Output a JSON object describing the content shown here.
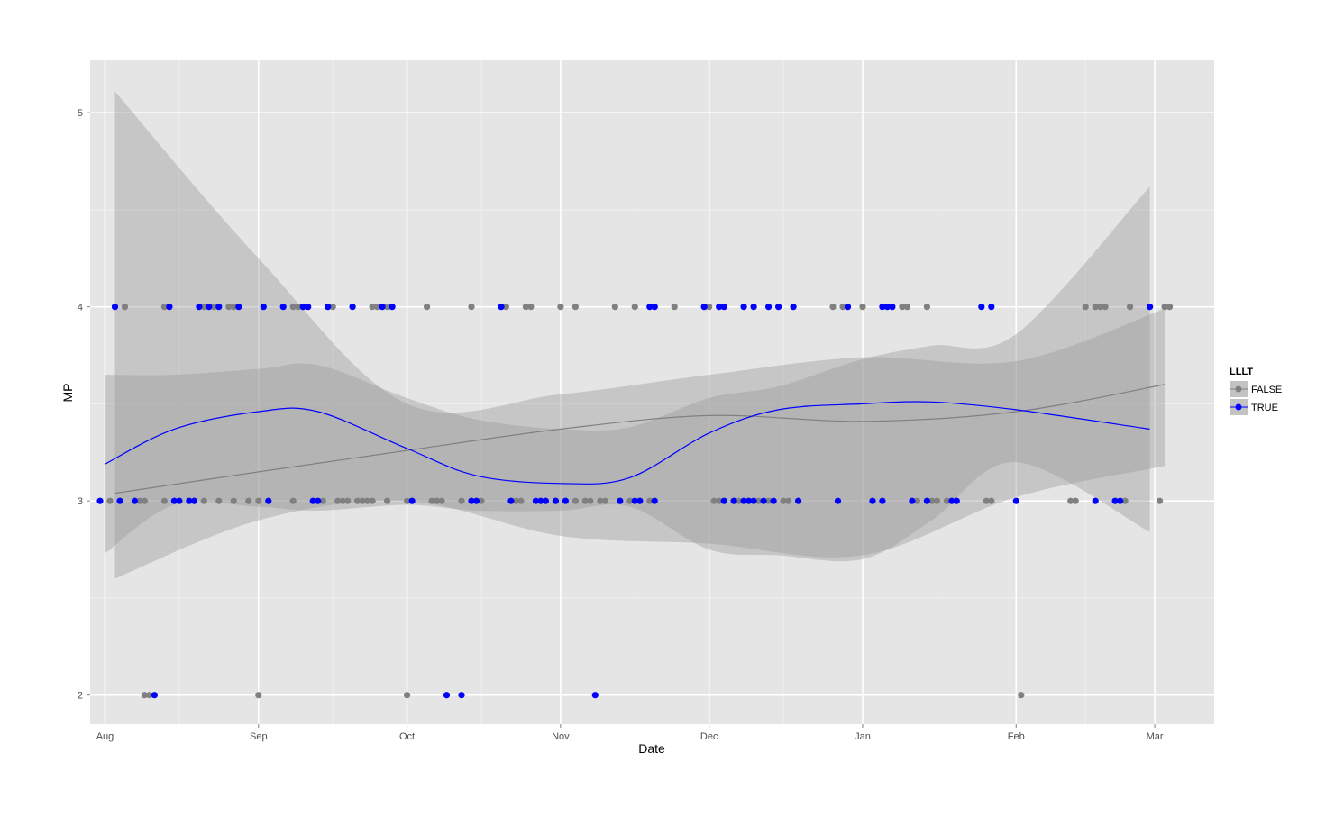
{
  "chart_data": {
    "type": "scatter",
    "xlabel": "Date",
    "ylabel": "MP",
    "x_ticks": [
      "Aug",
      "Sep",
      "Oct",
      "Nov",
      "Dec",
      "Jan",
      "Feb",
      "Mar"
    ],
    "y_ticks": [
      "2",
      "3",
      "4",
      "5"
    ],
    "xlim": [
      "2013-07-29",
      "2014-03-13"
    ],
    "ylim": [
      1.85,
      5.27
    ],
    "grid": true,
    "legend": {
      "title": "LLLT",
      "position": "right"
    },
    "series": [
      {
        "name": "FALSE",
        "color": "#808080",
        "points": [
          [
            "2013-08-05",
            4
          ],
          [
            "2013-08-13",
            4
          ],
          [
            "2013-08-14",
            4
          ],
          [
            "2013-08-21",
            4
          ],
          [
            "2013-08-23",
            4
          ],
          [
            "2013-08-26",
            4
          ],
          [
            "2013-08-27",
            4
          ],
          [
            "2013-09-08",
            4
          ],
          [
            "2013-09-09",
            4
          ],
          [
            "2013-09-10",
            4
          ],
          [
            "2013-09-16",
            4
          ],
          [
            "2013-09-24",
            4
          ],
          [
            "2013-09-25",
            4
          ],
          [
            "2013-09-27",
            4
          ],
          [
            "2013-10-05",
            4
          ],
          [
            "2013-10-14",
            4
          ],
          [
            "2013-10-21",
            4
          ],
          [
            "2013-10-25",
            4
          ],
          [
            "2013-10-26",
            4
          ],
          [
            "2013-11-01",
            4
          ],
          [
            "2013-11-04",
            4
          ],
          [
            "2013-11-12",
            4
          ],
          [
            "2013-11-16",
            4
          ],
          [
            "2013-11-20",
            4
          ],
          [
            "2013-11-24",
            4
          ],
          [
            "2013-11-30",
            4
          ],
          [
            "2013-12-01",
            4
          ],
          [
            "2013-12-26",
            4
          ],
          [
            "2013-12-28",
            4
          ],
          [
            "2014-01-01",
            4
          ],
          [
            "2014-01-09",
            4
          ],
          [
            "2014-01-10",
            4
          ],
          [
            "2014-01-14",
            4
          ],
          [
            "2014-02-15",
            4
          ],
          [
            "2014-02-17",
            4
          ],
          [
            "2014-02-18",
            4
          ],
          [
            "2014-02-19",
            4
          ],
          [
            "2014-02-24",
            4
          ],
          [
            "2014-03-03",
            4
          ],
          [
            "2014-03-04",
            4
          ],
          [
            "2013-08-02",
            3
          ],
          [
            "2013-08-08",
            3
          ],
          [
            "2013-08-09",
            3
          ],
          [
            "2013-08-13",
            3
          ],
          [
            "2013-08-19",
            3
          ],
          [
            "2013-08-21",
            3
          ],
          [
            "2013-08-24",
            3
          ],
          [
            "2013-08-27",
            3
          ],
          [
            "2013-08-30",
            3
          ],
          [
            "2013-09-01",
            3
          ],
          [
            "2013-09-08",
            3
          ],
          [
            "2013-09-14",
            3
          ],
          [
            "2013-09-17",
            3
          ],
          [
            "2013-09-18",
            3
          ],
          [
            "2013-09-19",
            3
          ],
          [
            "2013-09-21",
            3
          ],
          [
            "2013-09-22",
            3
          ],
          [
            "2013-09-23",
            3
          ],
          [
            "2013-09-24",
            3
          ],
          [
            "2013-09-27",
            3
          ],
          [
            "2013-10-01",
            3
          ],
          [
            "2013-10-06",
            3
          ],
          [
            "2013-10-07",
            3
          ],
          [
            "2013-10-08",
            3
          ],
          [
            "2013-10-12",
            3
          ],
          [
            "2013-10-14",
            3
          ],
          [
            "2013-10-16",
            3
          ],
          [
            "2013-10-23",
            3
          ],
          [
            "2013-10-24",
            3
          ],
          [
            "2013-10-31",
            3
          ],
          [
            "2013-11-04",
            3
          ],
          [
            "2013-11-06",
            3
          ],
          [
            "2013-11-07",
            3
          ],
          [
            "2013-11-09",
            3
          ],
          [
            "2013-11-10",
            3
          ],
          [
            "2013-11-13",
            3
          ],
          [
            "2013-11-15",
            3
          ],
          [
            "2013-11-17",
            3
          ],
          [
            "2013-11-19",
            3
          ],
          [
            "2013-12-02",
            3
          ],
          [
            "2013-12-03",
            3
          ],
          [
            "2013-12-07",
            3
          ],
          [
            "2013-12-11",
            3
          ],
          [
            "2013-12-13",
            3
          ],
          [
            "2013-12-16",
            3
          ],
          [
            "2013-12-17",
            3
          ],
          [
            "2014-01-12",
            3
          ],
          [
            "2014-01-14",
            3
          ],
          [
            "2014-01-15",
            3
          ],
          [
            "2014-01-16",
            3
          ],
          [
            "2014-01-18",
            3
          ],
          [
            "2014-01-26",
            3
          ],
          [
            "2014-01-27",
            3
          ],
          [
            "2014-02-12",
            3
          ],
          [
            "2014-02-13",
            3
          ],
          [
            "2014-02-23",
            3
          ],
          [
            "2014-03-02",
            3
          ],
          [
            "2013-08-09",
            2
          ],
          [
            "2013-08-10",
            2
          ],
          [
            "2013-09-01",
            2
          ],
          [
            "2013-10-01",
            2
          ],
          [
            "2014-02-02",
            2
          ]
        ]
      },
      {
        "name": "TRUE",
        "color": "#0000FF",
        "points": [
          [
            "2013-08-03",
            4
          ],
          [
            "2013-08-14",
            4
          ],
          [
            "2013-08-20",
            4
          ],
          [
            "2013-08-22",
            4
          ],
          [
            "2013-08-24",
            4
          ],
          [
            "2013-08-28",
            4
          ],
          [
            "2013-09-02",
            4
          ],
          [
            "2013-09-06",
            4
          ],
          [
            "2013-09-10",
            4
          ],
          [
            "2013-09-11",
            4
          ],
          [
            "2013-09-15",
            4
          ],
          [
            "2013-09-20",
            4
          ],
          [
            "2013-09-26",
            4
          ],
          [
            "2013-09-28",
            4
          ],
          [
            "2013-10-20",
            4
          ],
          [
            "2013-11-19",
            4
          ],
          [
            "2013-11-20",
            4
          ],
          [
            "2013-11-30",
            4
          ],
          [
            "2013-12-03",
            4
          ],
          [
            "2013-12-04",
            4
          ],
          [
            "2013-12-08",
            4
          ],
          [
            "2013-12-10",
            4
          ],
          [
            "2013-12-13",
            4
          ],
          [
            "2013-12-15",
            4
          ],
          [
            "2013-12-18",
            4
          ],
          [
            "2013-12-29",
            4
          ],
          [
            "2014-01-05",
            4
          ],
          [
            "2014-01-06",
            4
          ],
          [
            "2014-01-07",
            4
          ],
          [
            "2014-01-25",
            4
          ],
          [
            "2014-01-27",
            4
          ],
          [
            "2014-02-28",
            4
          ],
          [
            "2013-07-31",
            3
          ],
          [
            "2013-08-04",
            3
          ],
          [
            "2013-08-07",
            3
          ],
          [
            "2013-08-15",
            3
          ],
          [
            "2013-08-16",
            3
          ],
          [
            "2013-08-18",
            3
          ],
          [
            "2013-08-19",
            3
          ],
          [
            "2013-09-03",
            3
          ],
          [
            "2013-09-12",
            3
          ],
          [
            "2013-09-13",
            3
          ],
          [
            "2013-10-02",
            3
          ],
          [
            "2013-10-14",
            3
          ],
          [
            "2013-10-15",
            3
          ],
          [
            "2013-10-22",
            3
          ],
          [
            "2013-10-27",
            3
          ],
          [
            "2013-10-28",
            3
          ],
          [
            "2013-10-29",
            3
          ],
          [
            "2013-10-31",
            3
          ],
          [
            "2013-11-02",
            3
          ],
          [
            "2013-11-13",
            3
          ],
          [
            "2013-11-16",
            3
          ],
          [
            "2013-11-17",
            3
          ],
          [
            "2013-11-20",
            3
          ],
          [
            "2013-12-04",
            3
          ],
          [
            "2013-12-06",
            3
          ],
          [
            "2013-12-08",
            3
          ],
          [
            "2013-12-09",
            3
          ],
          [
            "2013-12-10",
            3
          ],
          [
            "2013-12-12",
            3
          ],
          [
            "2013-12-14",
            3
          ],
          [
            "2013-12-19",
            3
          ],
          [
            "2013-12-27",
            3
          ],
          [
            "2014-01-03",
            3
          ],
          [
            "2014-01-05",
            3
          ],
          [
            "2014-01-11",
            3
          ],
          [
            "2014-01-14",
            3
          ],
          [
            "2014-01-19",
            3
          ],
          [
            "2014-01-20",
            3
          ],
          [
            "2014-02-01",
            3
          ],
          [
            "2014-02-17",
            3
          ],
          [
            "2014-02-21",
            3
          ],
          [
            "2014-02-22",
            3
          ],
          [
            "2013-08-11",
            2
          ],
          [
            "2013-10-09",
            2
          ],
          [
            "2013-10-12",
            2
          ],
          [
            "2013-11-08",
            2
          ]
        ]
      }
    ],
    "smooth": [
      {
        "name": "FALSE",
        "x": [
          "2013-08-03",
          "2013-09-01",
          "2013-10-01",
          "2013-11-01",
          "2013-12-01",
          "2014-01-01",
          "2014-02-01",
          "2014-03-03"
        ],
        "y": [
          3.04,
          3.15,
          3.26,
          3.37,
          3.44,
          3.41,
          3.46,
          3.6
        ],
        "band_lower": [
          2.6,
          2.9,
          3.0,
          2.82,
          2.78,
          2.72,
          3.02,
          3.18
        ],
        "band_upper": [
          5.11,
          4.25,
          3.5,
          3.55,
          3.65,
          3.74,
          3.72,
          3.99
        ]
      },
      {
        "name": "TRUE",
        "x": [
          "2013-08-01",
          "2013-08-15",
          "2013-09-01",
          "2013-09-13",
          "2013-10-01",
          "2013-10-15",
          "2013-11-01",
          "2013-11-15",
          "2013-12-01",
          "2013-12-15",
          "2014-01-01",
          "2014-01-15",
          "2014-02-01",
          "2014-02-28"
        ],
        "y": [
          3.19,
          3.37,
          3.46,
          3.46,
          3.27,
          3.13,
          3.09,
          3.12,
          3.35,
          3.47,
          3.5,
          3.51,
          3.47,
          3.37
        ],
        "band_lower": [
          2.73,
          2.98,
          2.97,
          2.95,
          2.98,
          2.95,
          2.95,
          2.97,
          2.75,
          2.72,
          2.7,
          2.9,
          3.2,
          2.84
        ],
        "band_upper": [
          3.65,
          3.65,
          3.68,
          3.7,
          3.53,
          3.42,
          3.37,
          3.38,
          3.53,
          3.59,
          3.73,
          3.8,
          3.86,
          4.62
        ]
      }
    ]
  }
}
